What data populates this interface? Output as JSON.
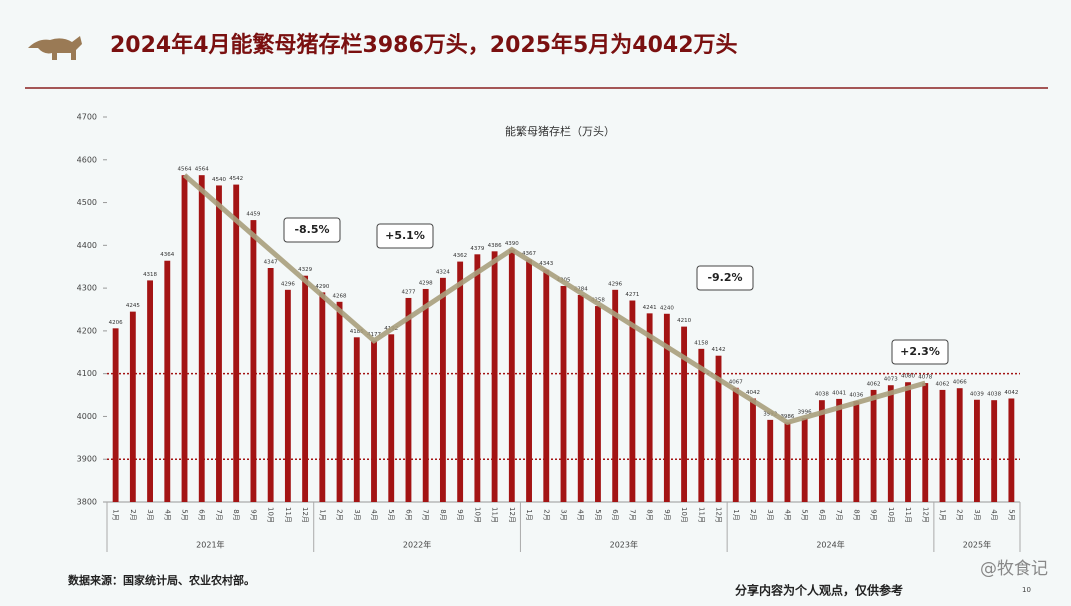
{
  "header": {
    "title": "2024年4月能繁母猪存栏3986万头，2025年5月为4042万头"
  },
  "chart_data": {
    "type": "bar",
    "title": "能繁母猪存栏（万头）",
    "categories": [
      "1月",
      "2月",
      "3月",
      "4月",
      "5月",
      "6月",
      "7月",
      "8月",
      "9月",
      "10月",
      "11月",
      "12月",
      "1月",
      "2月",
      "3月",
      "4月",
      "5月",
      "6月",
      "7月",
      "8月",
      "9月",
      "10月",
      "11月",
      "12月",
      "1月",
      "2月",
      "3月",
      "4月",
      "5月",
      "6月",
      "7月",
      "8月",
      "9月",
      "10月",
      "11月",
      "12月",
      "1月",
      "2月",
      "3月",
      "4月",
      "5月",
      "6月",
      "7月",
      "8月",
      "9月",
      "10月",
      "11月",
      "12月",
      "1月",
      "2月",
      "3月",
      "4月",
      "5月"
    ],
    "groups": [
      "2021年",
      "2022年",
      "2023年",
      "2024年",
      "2025年"
    ],
    "values": [
      4206,
      4245,
      4318,
      4364,
      4564,
      4564,
      4540,
      4542,
      4459,
      4347,
      4296,
      4329,
      4290,
      4268,
      4185,
      4177,
      4192,
      4277,
      4298,
      4324,
      4362,
      4379,
      4386,
      4390,
      4367,
      4343,
      4305,
      4284,
      4258,
      4296,
      4271,
      4241,
      4240,
      4210,
      4158,
      4142,
      4067,
      4042,
      3992,
      3986,
      3996,
      4038,
      4041,
      4036,
      4062,
      4073,
      4080,
      4078,
      4062,
      4066,
      4039,
      4038,
      4042
    ],
    "color": "#a31414",
    "ylim": [
      3800,
      4700
    ],
    "yticks": [
      3800,
      3900,
      4000,
      4100,
      4200,
      4300,
      4400,
      4500,
      4600,
      4700
    ],
    "reference_lines": [
      4100,
      3900
    ],
    "annotations": [
      "-8.5%",
      "+5.1%",
      "-9.2%",
      "+2.3%"
    ]
  },
  "footer": {
    "source": "数据来源：国家统计局、农业农村部。",
    "note": "分享内容为个人观点，仅供参考",
    "page": "10",
    "watermark": "@牧食记"
  }
}
